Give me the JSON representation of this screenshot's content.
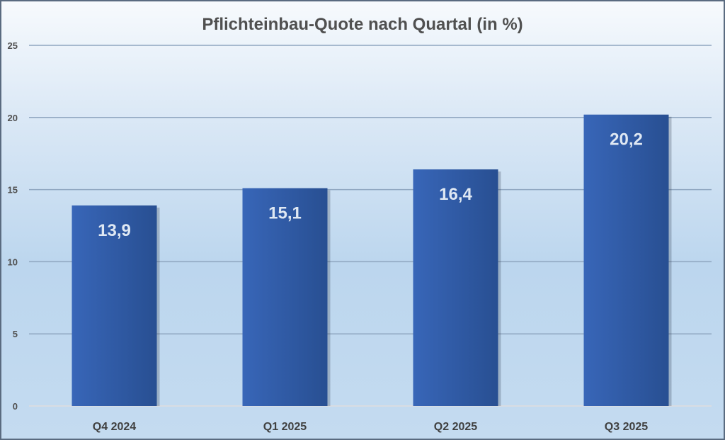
{
  "chart_data": {
    "type": "bar",
    "title": "Pflichteinbau-Quote nach Quartal (in %)",
    "categories": [
      "Q4 2024",
      "Q1 2025",
      "Q2 2025",
      "Q3 2025"
    ],
    "values": [
      13.9,
      15.1,
      16.4,
      20.2
    ],
    "data_labels": [
      "13,9",
      "15,1",
      "16,4",
      "20,2"
    ],
    "xlabel": "",
    "ylabel": "",
    "ylim": [
      0,
      25
    ],
    "yticks": [
      0,
      5,
      10,
      15,
      20,
      25
    ],
    "grid": true,
    "legend": "none",
    "colors": {
      "bar_light": "#3866b8",
      "bar_dark": "#284f92",
      "grid": "#8fa6c0"
    }
  }
}
